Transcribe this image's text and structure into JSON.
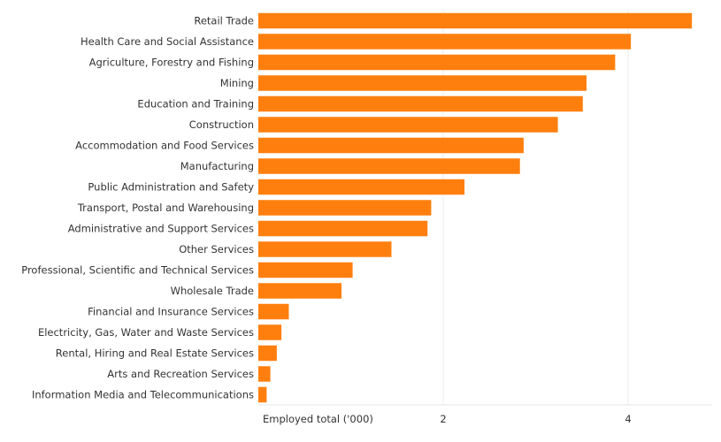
{
  "chart_data": {
    "type": "bar",
    "orientation": "horizontal",
    "categories": [
      "Retail Trade",
      "Health Care and Social Assistance",
      "Agriculture, Forestry and Fishing",
      "Mining",
      "Education and Training",
      "Construction",
      "Accommodation and Food Services",
      "Manufacturing",
      "Public Administration and Safety",
      "Transport, Postal and Warehousing",
      "Administrative and Support Services",
      "Other Services",
      "Professional, Scientific and Technical Services",
      "Wholesale Trade",
      "Financial and Insurance Services",
      "Electricity, Gas, Water and Waste Services",
      "Rental, Hiring and Real Estate Services",
      "Arts and Recreation Services",
      "Information Media and Telecommunications"
    ],
    "values": [
      4.69,
      4.03,
      3.86,
      3.55,
      3.51,
      3.24,
      2.87,
      2.83,
      2.23,
      1.87,
      1.83,
      1.44,
      1.02,
      0.9,
      0.33,
      0.25,
      0.2,
      0.13,
      0.09
    ],
    "xlabel": "Employed total ('000)",
    "ylabel": "",
    "xlim": [
      0,
      4.85
    ],
    "ticks": [
      2,
      4
    ],
    "tick_labels": [
      "2",
      "4"
    ],
    "bar_color": "#FF7F0E",
    "grid": true
  }
}
